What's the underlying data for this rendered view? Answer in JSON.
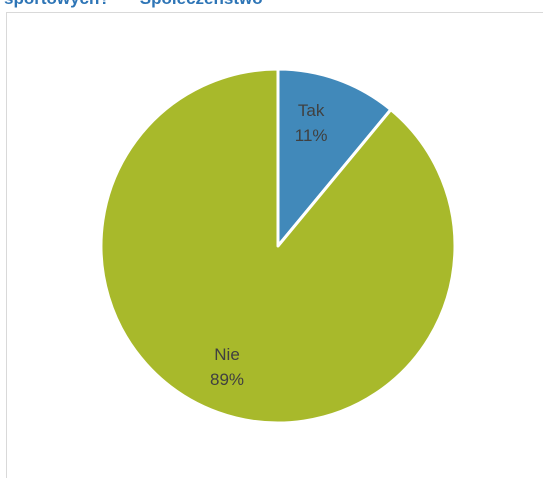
{
  "title": {
    "part1": "sportowych?",
    "part2": "Społeczeństwo"
  },
  "chart_data": {
    "type": "pie",
    "categories": [
      "Tak",
      "Nie"
    ],
    "values": [
      11,
      89
    ],
    "labels": [
      "11%",
      "89%"
    ],
    "colors": [
      "#4189ba",
      "#a8b92b"
    ],
    "start_angle_deg": 0,
    "direction": "clockwise",
    "legend": "none"
  }
}
